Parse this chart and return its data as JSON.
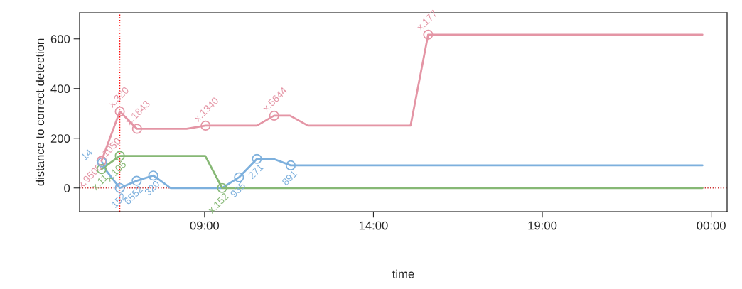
{
  "chart_data": {
    "type": "line",
    "xlabel": "time",
    "ylabel": "distance to correct detection",
    "xlim": [
      5.3,
      24.47
    ],
    "ylim": [
      -95,
      705
    ],
    "xticks": [
      {
        "value": 9,
        "label": "09:00"
      },
      {
        "value": 14,
        "label": "14:00"
      },
      {
        "value": 19,
        "label": "19:00"
      },
      {
        "value": 24,
        "label": "00:00"
      }
    ],
    "yticks": [
      0,
      200,
      400,
      600
    ],
    "grid": false,
    "legend": false,
    "series": [
      {
        "color": "#e495a5",
        "x": [
          5.95,
          6.49,
          7.0,
          8.47,
          9.03,
          10.55,
          11.06,
          11.53,
          12.06,
          15.1,
          15.62,
          23.74
        ],
        "values": [
          109,
          308,
          238,
          238,
          251,
          251,
          291,
          291,
          251,
          251,
          617,
          617
        ]
      },
      {
        "color": "#86b875",
        "x": [
          5.95,
          6.49,
          9.02,
          9.52,
          23.74
        ],
        "values": [
          76,
          129,
          129,
          0,
          0
        ]
      },
      {
        "color": "#7db0dd",
        "x": [
          5.97,
          6.1,
          6.49,
          6.99,
          7.48,
          7.64,
          7.99,
          9.52,
          10.02,
          10.55,
          11.04,
          11.55,
          23.74
        ],
        "values": [
          103,
          68,
          0,
          29,
          50,
          35,
          0,
          0,
          43,
          117,
          117,
          91,
          91
        ]
      }
    ],
    "ref_lines": [
      {
        "axis": "x",
        "value": 6.49,
        "color": "#ff0000",
        "line_style": "dotted"
      },
      {
        "axis": "y",
        "value": 0,
        "color": "#cc3333",
        "line_style": "dotted"
      }
    ],
    "annotations": [
      {
        "text": "x.9500",
        "x": 5.95,
        "y": 109
      },
      {
        "text": "1050",
        "x": 5.95,
        "y": 109
      },
      {
        "text": "x.320",
        "x": 6.49,
        "y": 308
      },
      {
        "text": "x.1843",
        "x": 7.0,
        "y": 238
      },
      {
        "text": "x.1340",
        "x": 9.03,
        "y": 251
      },
      {
        "text": "x.5644",
        "x": 11.06,
        "y": 291
      },
      {
        "text": "x.177",
        "x": 15.62,
        "y": 617
      },
      {
        "text": "x.11",
        "x": 5.95,
        "y": 76
      },
      {
        "text": "x.105",
        "x": 6.49,
        "y": 129
      },
      {
        "text": "x.152",
        "x": 9.52,
        "y": 0
      },
      {
        "text": "14",
        "x": 5.97,
        "y": 103
      },
      {
        "text": "152",
        "x": 6.49,
        "y": 0
      },
      {
        "text": "6552",
        "x": 6.99,
        "y": 29
      },
      {
        "text": "320",
        "x": 7.48,
        "y": 50
      },
      {
        "text": "935",
        "x": 10.02,
        "y": 43
      },
      {
        "text": "271",
        "x": 10.55,
        "y": 117
      },
      {
        "text": "891",
        "x": 11.55,
        "y": 91
      }
    ]
  }
}
